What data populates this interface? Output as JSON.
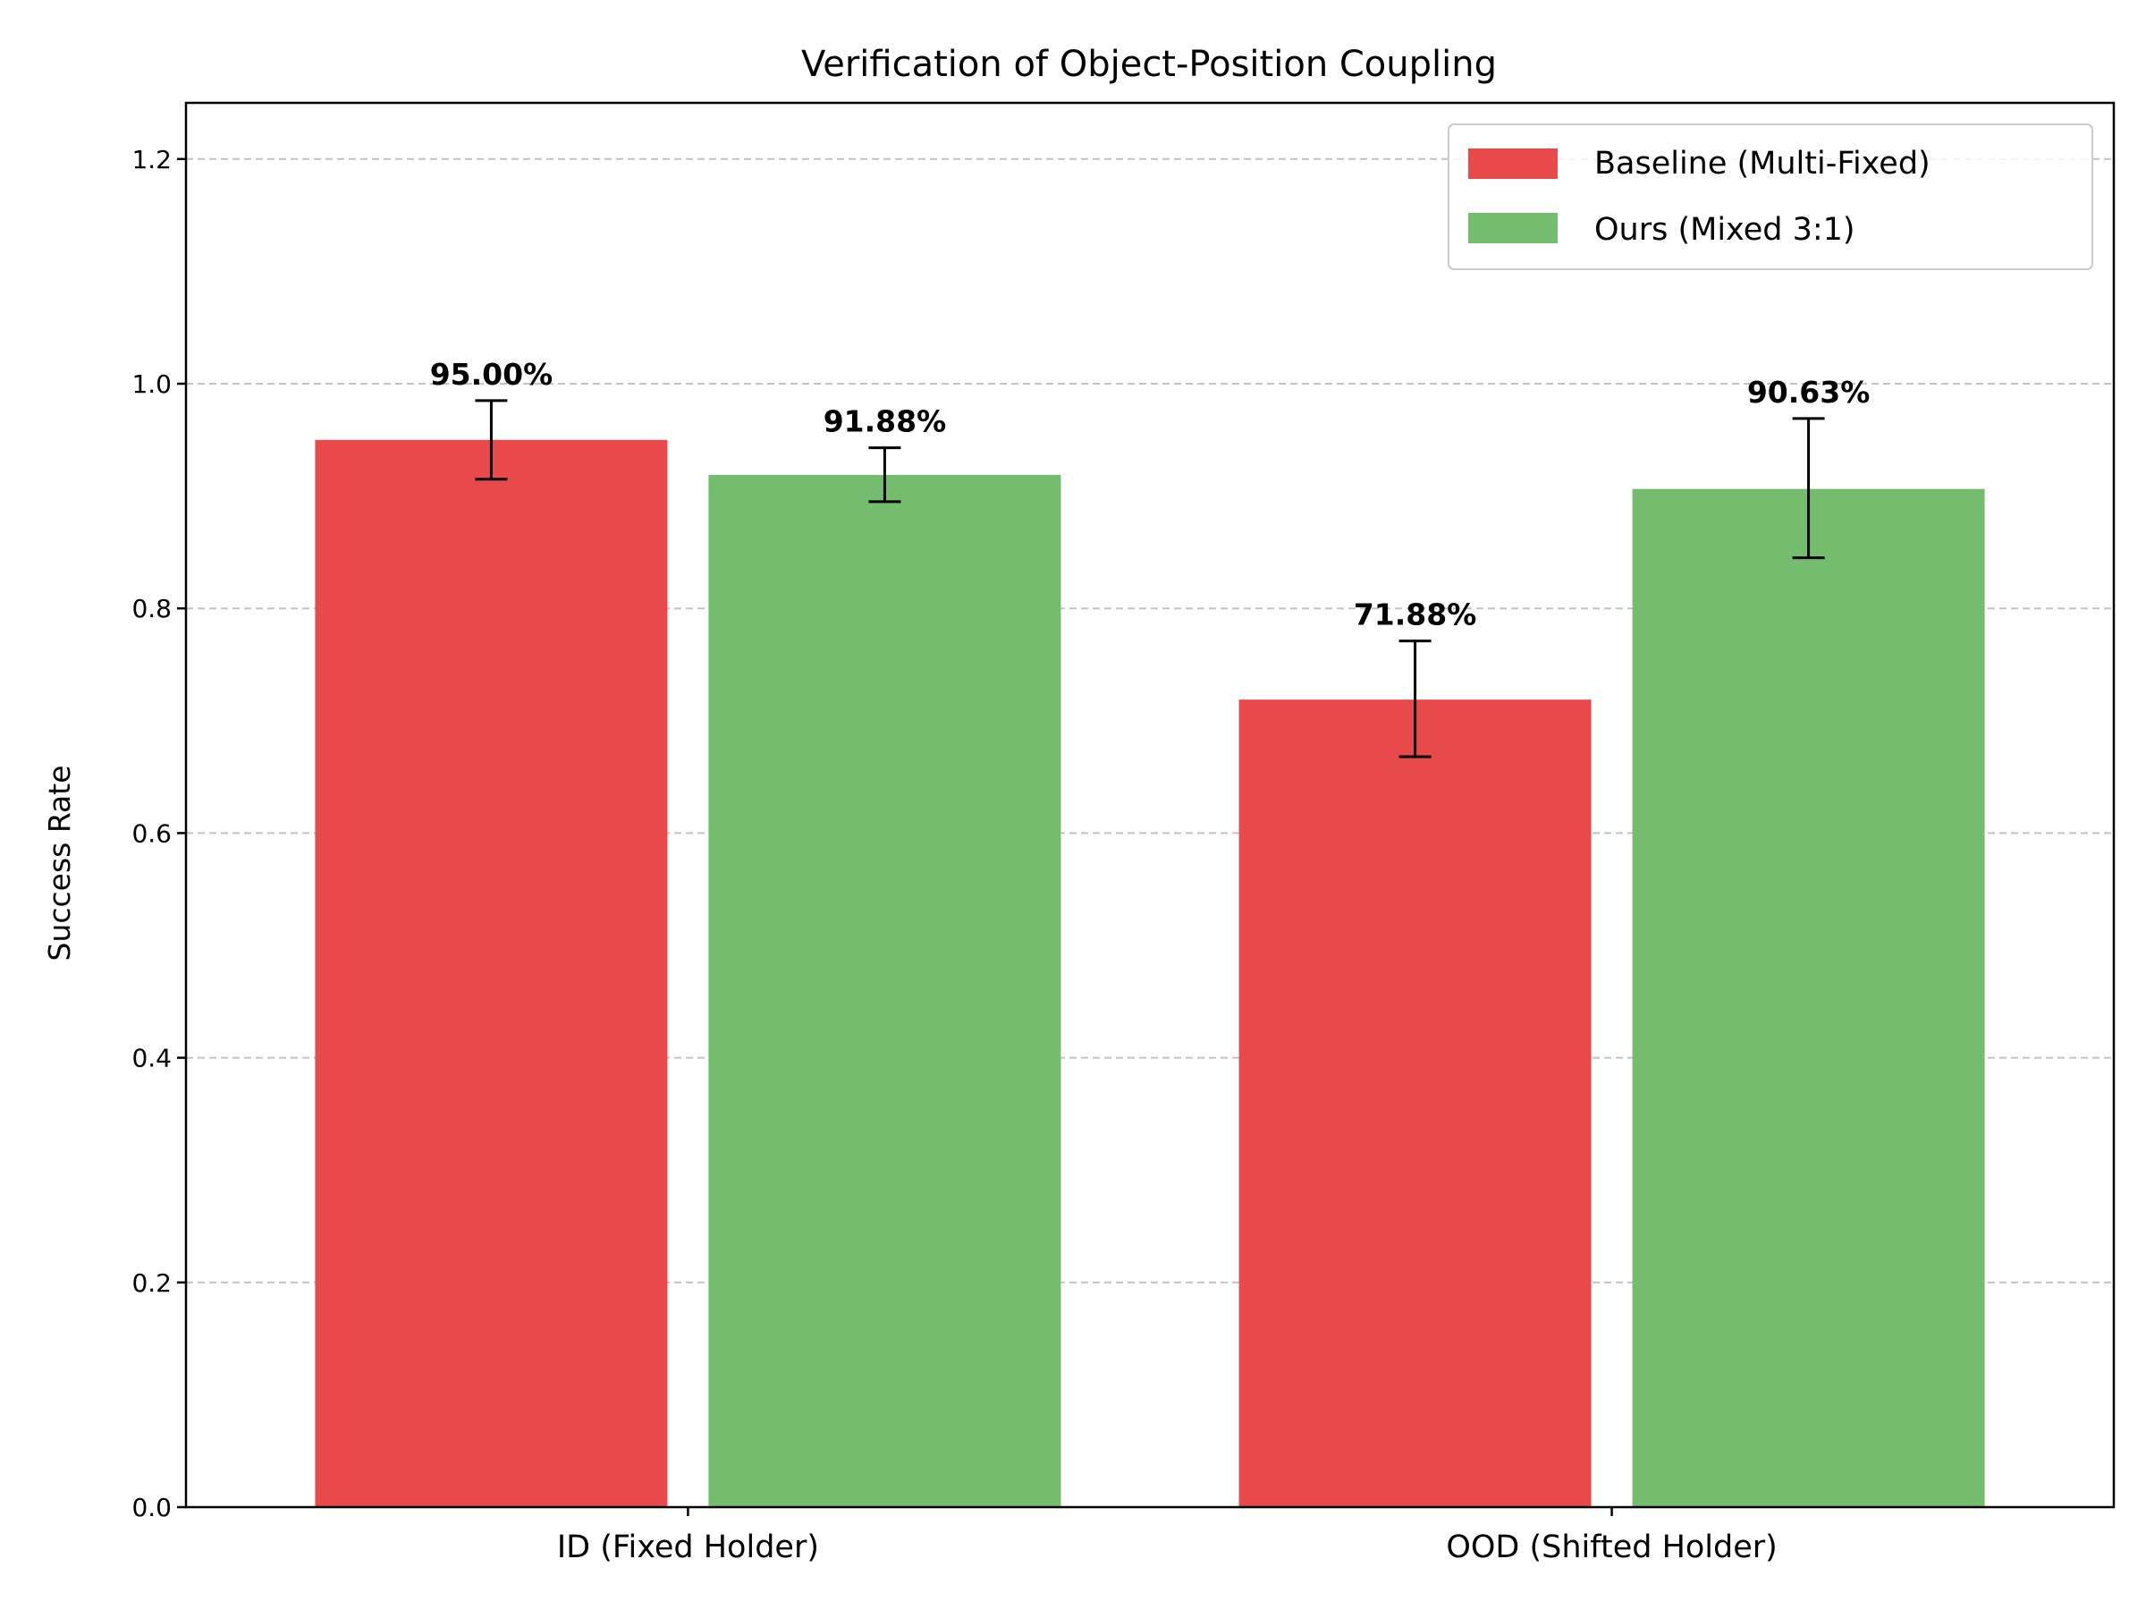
{
  "chart_data": {
    "type": "bar",
    "title": "Verification of Object-Position Coupling",
    "xlabel": "",
    "ylabel": "Success Rate",
    "ylim": [
      0,
      1.25
    ],
    "yticks": [
      0.0,
      0.2,
      0.4,
      0.6,
      0.8,
      1.0,
      1.2
    ],
    "ytick_labels": [
      "0.0",
      "0.2",
      "0.4",
      "0.6",
      "0.8",
      "1.0",
      "1.2"
    ],
    "grid": "y-dashed",
    "legend_position": "top-right",
    "categories": [
      "ID (Fixed Holder)",
      "OOD (Shifted Holder)"
    ],
    "series": [
      {
        "name": "Baseline (Multi-Fixed)",
        "color": "#e8494a",
        "values": [
          0.95,
          0.7188
        ],
        "error_low": [
          0.915,
          0.668
        ],
        "error_high": [
          0.985,
          0.771
        ],
        "labels": [
          "95.00%",
          "71.88%"
        ]
      },
      {
        "name": "Ours (Mixed 3:1)",
        "color": "#74bd6f",
        "values": [
          0.9188,
          0.9063
        ],
        "error_low": [
          0.895,
          0.845
        ],
        "error_high": [
          0.943,
          0.969
        ],
        "labels": [
          "91.88%",
          "90.63%"
        ]
      }
    ]
  }
}
